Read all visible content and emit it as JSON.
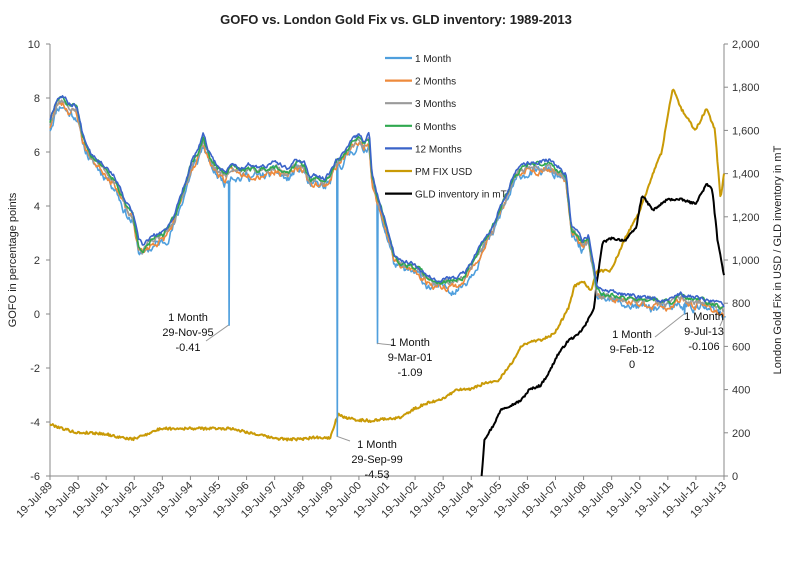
{
  "chart_data": {
    "type": "line",
    "title": "GOFO vs. London Gold Fix vs. GLD inventory: 1989-2013",
    "ylabel": "GOFO in percentage points",
    "y2label": "London Gold Fix in USD / GLD inventory in mT",
    "xlabel": "",
    "xlim": [
      1989.55,
      2013.52
    ],
    "ylim": [
      -6,
      10
    ],
    "y2lim": [
      0,
      2000
    ],
    "grid": false,
    "legend_position": "top-center",
    "x_ticks": [
      "19-Jul-89",
      "19-Jul-90",
      "19-Jul-91",
      "19-Jul-92",
      "19-Jul-93",
      "19-Jul-94",
      "19-Jul-95",
      "19-Jul-96",
      "19-Jul-97",
      "19-Jul-98",
      "19-Jul-99",
      "19-Jul-00",
      "19-Jul-01",
      "19-Jul-02",
      "19-Jul-03",
      "19-Jul-04",
      "19-Jul-05",
      "19-Jul-06",
      "19-Jul-07",
      "19-Jul-08",
      "19-Jul-09",
      "19-Jul-10",
      "19-Jul-11",
      "19-Jul-12",
      "19-Jul-13"
    ],
    "y_ticks": [
      "10",
      "8",
      "6",
      "4",
      "2",
      "0",
      "-2",
      "-4",
      "-6"
    ],
    "y2_ticks": [
      "2,000",
      "1,800",
      "1,600",
      "1,400",
      "1,200",
      "1,000",
      "800",
      "600",
      "400",
      "200",
      "0"
    ],
    "colors": {
      "1 Month": "#4f9fdd",
      "2 Months": "#ee8a3c",
      "3 Months": "#9a9a9a",
      "6 Months": "#2fa84f",
      "12 Months": "#3a63c9",
      "PM FIX USD": "#c99a06",
      "GLD inventory in mT": "#000000"
    },
    "gofo_anchor": {
      "x": [
        1989.55,
        1989.8,
        1990.0,
        1990.2,
        1990.5,
        1990.7,
        1991.0,
        1991.3,
        1991.6,
        1991.9,
        1992.2,
        1992.5,
        1992.7,
        1992.85,
        1993.0,
        1993.3,
        1993.6,
        1994.0,
        1994.3,
        1994.6,
        1994.8,
        1995.0,
        1995.3,
        1995.6,
        1995.8,
        1996.0,
        1996.3,
        1996.6,
        1997.0,
        1997.3,
        1997.6,
        1998.0,
        1998.3,
        1998.6,
        1998.8,
        1999.0,
        1999.3,
        1999.5,
        1999.7,
        2000.0,
        2000.3,
        2000.5,
        2000.7,
        2000.9,
        2001.0,
        2001.2,
        2001.4,
        2001.6,
        2001.8,
        2002.0,
        2002.3,
        2002.6,
        2003.0,
        2003.3,
        2003.6,
        2004.0,
        2004.3,
        2004.6,
        2005.0,
        2005.3,
        2005.6,
        2006.0,
        2006.3,
        2006.6,
        2007.0,
        2007.3,
        2007.5,
        2007.7,
        2007.9,
        2008.1,
        2008.3,
        2008.5,
        2008.7,
        2008.9,
        2009.0,
        2009.2,
        2009.5,
        2010.0,
        2010.5,
        2011.0,
        2011.5,
        2012.0,
        2012.5,
        2013.0,
        2013.3,
        2013.52
      ],
      "y": [
        7.0,
        7.8,
        7.9,
        7.6,
        7.5,
        6.5,
        5.8,
        5.5,
        5.2,
        4.8,
        4.0,
        3.5,
        2.5,
        2.3,
        2.5,
        2.7,
        2.8,
        3.5,
        4.5,
        5.5,
        5.8,
        6.4,
        5.5,
        5.2,
        5.0,
        5.4,
        5.2,
        5.3,
        5.2,
        5.3,
        5.4,
        5.1,
        5.5,
        5.4,
        4.8,
        4.9,
        4.8,
        5.0,
        5.5,
        5.8,
        6.2,
        6.4,
        6.2,
        6.5,
        5.0,
        4.2,
        3.5,
        2.8,
        2.0,
        1.8,
        1.7,
        1.6,
        1.2,
        1.1,
        1.1,
        1.1,
        1.3,
        1.8,
        2.6,
        3.1,
        3.9,
        4.8,
        5.3,
        5.4,
        5.4,
        5.5,
        5.3,
        5.2,
        5.0,
        3.0,
        2.8,
        2.5,
        2.7,
        1.5,
        0.8,
        0.6,
        0.6,
        0.5,
        0.4,
        0.4,
        0.3,
        0.5,
        0.4,
        0.3,
        0.15,
        0.0
      ]
    },
    "spikes": [
      {
        "x": 1995.9,
        "y": -0.41
      },
      {
        "x": 1999.75,
        "y": -4.53
      },
      {
        "x": 2001.18,
        "y": -1.09
      },
      {
        "x": 2012.1,
        "y": 0
      },
      {
        "x": 2013.52,
        "y": -0.106
      }
    ],
    "series": [
      {
        "name": "1 Month",
        "axis": "left",
        "offset": -0.15,
        "noise": 0.28,
        "seed": 11
      },
      {
        "name": "2 Months",
        "axis": "left",
        "offset": -0.05,
        "noise": 0.22,
        "seed": 23
      },
      {
        "name": "3 Months",
        "axis": "left",
        "offset": 0.05,
        "noise": 0.18,
        "seed": 37
      },
      {
        "name": "6 Months",
        "axis": "left",
        "offset": 0.12,
        "noise": 0.15,
        "seed": 51
      },
      {
        "name": "12 Months",
        "axis": "left",
        "offset": 0.22,
        "noise": 0.13,
        "seed": 67
      },
      {
        "name": "PM FIX USD",
        "axis": "right",
        "noise": 6,
        "seed": 79,
        "x": [
          1989.55,
          1990.0,
          1990.5,
          1991.0,
          1991.5,
          1992.0,
          1992.5,
          1993.0,
          1993.5,
          1994.0,
          1995.0,
          1996.0,
          1996.5,
          1997.0,
          1997.5,
          1998.0,
          1998.5,
          1999.0,
          1999.5,
          1999.7,
          1999.8,
          2000.0,
          2000.5,
          2001.0,
          2001.5,
          2002.0,
          2002.5,
          2003.0,
          2003.5,
          2004.0,
          2004.5,
          2005.0,
          2005.5,
          2006.0,
          2006.3,
          2006.6,
          2007.0,
          2007.5,
          2008.0,
          2008.2,
          2008.5,
          2008.8,
          2009.0,
          2009.5,
          2010.0,
          2010.5,
          2011.0,
          2011.3,
          2011.7,
          2012.0,
          2012.5,
          2012.9,
          2013.2,
          2013.4,
          2013.52
        ],
        "y": [
          240,
          220,
          200,
          200,
          195,
          180,
          170,
          195,
          220,
          220,
          220,
          220,
          205,
          190,
          175,
          170,
          170,
          180,
          175,
          250,
          290,
          270,
          260,
          255,
          265,
          270,
          310,
          340,
          355,
          400,
          400,
          430,
          440,
          530,
          600,
          620,
          630,
          660,
          780,
          880,
          900,
          860,
          950,
          950,
          1100,
          1220,
          1400,
          1500,
          1800,
          1700,
          1600,
          1700,
          1600,
          1280,
          1400
        ]
      },
      {
        "name": "GLD inventory in mT",
        "axis": "right",
        "noise": 5,
        "seed": 97,
        "x": [
          2004.9,
          2005.0,
          2005.3,
          2005.6,
          2006.0,
          2006.3,
          2006.6,
          2007.0,
          2007.3,
          2007.6,
          2008.0,
          2008.3,
          2008.6,
          2008.9,
          2009.0,
          2009.2,
          2009.5,
          2010.0,
          2010.4,
          2010.6,
          2011.0,
          2011.5,
          2012.0,
          2012.5,
          2012.9,
          2013.1,
          2013.3,
          2013.52
        ],
        "y": [
          0,
          170,
          230,
          310,
          330,
          350,
          400,
          420,
          480,
          560,
          630,
          650,
          700,
          780,
          900,
          1080,
          1100,
          1090,
          1150,
          1300,
          1230,
          1280,
          1280,
          1260,
          1350,
          1330,
          1080,
          930
        ]
      }
    ],
    "annotations": [
      {
        "name": "ann-nov95",
        "lines": [
          "1 Month",
          "29-Nov-95",
          "-0.41"
        ]
      },
      {
        "name": "ann-sep99",
        "lines": [
          "1 Month",
          "29-Sep-99",
          "-4.53"
        ]
      },
      {
        "name": "ann-mar01",
        "lines": [
          "1 Month",
          "9-Mar-01",
          "-1.09"
        ]
      },
      {
        "name": "ann-feb12",
        "lines": [
          "1 Month",
          "9-Feb-12",
          "0"
        ]
      },
      {
        "name": "ann-jul13",
        "lines": [
          "1 Month",
          "9-Jul-13",
          "-0.106"
        ]
      }
    ]
  }
}
